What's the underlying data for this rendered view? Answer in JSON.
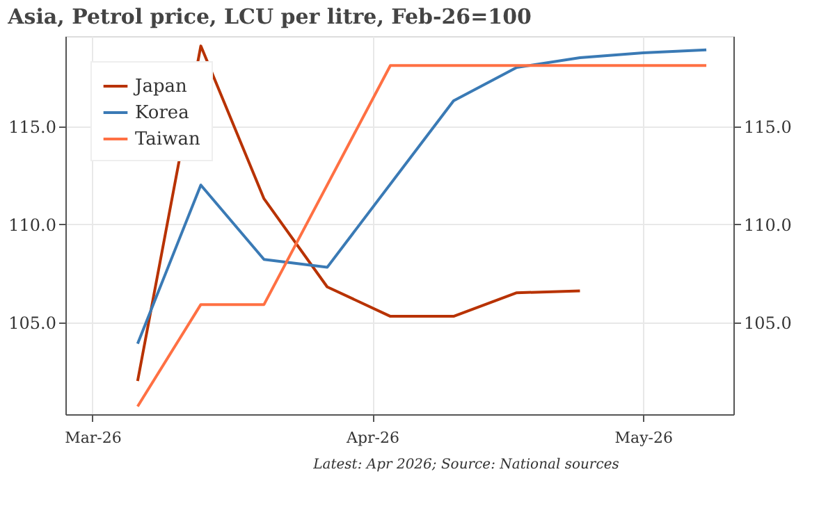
{
  "chart_data": {
    "type": "line",
    "title": "Asia, Petrol price, LCU per litre, Feb-26=100",
    "series": [
      {
        "name": "Japan",
        "color": "#b83200",
        "x": [
          "2026-03-06",
          "2026-03-13",
          "2026-03-20",
          "2026-03-27",
          "2026-04-03",
          "2026-04-10",
          "2026-04-17",
          "2026-04-24"
        ],
        "values": [
          102.0,
          119.1,
          111.3,
          106.8,
          105.3,
          105.3,
          106.5,
          106.6
        ]
      },
      {
        "name": "Korea",
        "color": "#3a7ab5",
        "x": [
          "2026-03-06",
          "2026-03-13",
          "2026-03-20",
          "2026-03-27",
          "2026-04-10",
          "2026-04-17",
          "2026-04-24",
          "2026-05-01",
          "2026-05-08"
        ],
        "values": [
          103.9,
          112.0,
          108.2,
          107.8,
          116.3,
          118.0,
          118.5,
          118.75,
          118.9
        ]
      },
      {
        "name": "Taiwan",
        "color": "#ff7043",
        "x": [
          "2026-03-06",
          "2026-03-13",
          "2026-03-20",
          "2026-04-03",
          "2026-05-08"
        ],
        "values": [
          100.7,
          105.9,
          105.9,
          118.1,
          118.1
        ]
      }
    ],
    "xlim": [
      "2026-02-26",
      "2026-05-11"
    ],
    "xticks": [
      {
        "value": "2026-03-01",
        "label": "Mar-26"
      },
      {
        "value": "2026-04-01",
        "label": "Apr-26"
      },
      {
        "value": "2026-05-01",
        "label": "May-26"
      }
    ],
    "ylim": [
      100.3,
      119.6
    ],
    "yticks": [
      {
        "value": 105,
        "label": "105.0"
      },
      {
        "value": 110,
        "label": "110.0"
      },
      {
        "value": 115,
        "label": "115.0"
      }
    ],
    "y2lim": [
      100.3,
      119.6
    ],
    "y2ticks": [
      {
        "value": 105,
        "label": "105.0"
      },
      {
        "value": 110,
        "label": "110.0"
      },
      {
        "value": 115,
        "label": "115.0"
      }
    ],
    "grid": true,
    "legend": "top left",
    "line_style": "solid",
    "annotations": [
      "Latest: Apr 2026; Source: National sources"
    ]
  }
}
